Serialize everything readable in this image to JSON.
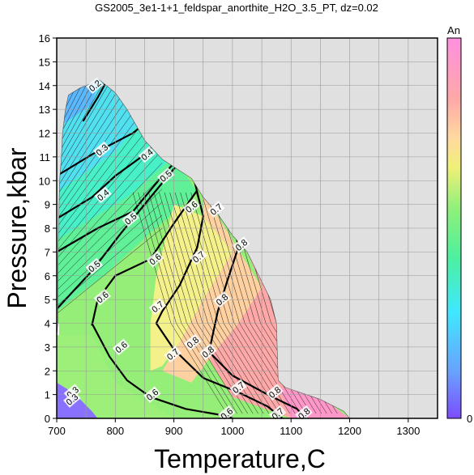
{
  "chart_data": {
    "type": "contour",
    "title": "GS2005_3e1-1+1_feldspar_anorthite_H2O_3.5_PT, dz=0.02",
    "xlabel": "Temperature,C",
    "ylabel": "Pressure,kbar",
    "xlim": [
      700,
      1350
    ],
    "ylim": [
      0,
      16
    ],
    "xticks": [
      700,
      800,
      900,
      1000,
      1100,
      1200,
      1300
    ],
    "yticks": [
      0,
      1,
      2,
      3,
      4,
      5,
      6,
      7,
      8,
      9,
      10,
      11,
      12,
      13,
      14,
      15,
      16
    ],
    "grid": true,
    "colorbar": {
      "label": "An",
      "min_label": "0",
      "min": 0,
      "max": 1
    },
    "region_boundary": [
      [
        700,
        0
      ],
      [
        1200,
        0
      ],
      [
        1190,
        0.3
      ],
      [
        1150,
        0.8
      ],
      [
        1090,
        1.3
      ],
      [
        1078,
        1.6
      ],
      [
        1075,
        4
      ],
      [
        1065,
        5
      ],
      [
        1045,
        6
      ],
      [
        1025,
        7
      ],
      [
        1000,
        7.7
      ],
      [
        975,
        8.6
      ],
      [
        950,
        9.3
      ],
      [
        930,
        10.1
      ],
      [
        905,
        10.5
      ],
      [
        880,
        10.9
      ],
      [
        850,
        11.7
      ],
      [
        820,
        13
      ],
      [
        800,
        13.7
      ],
      [
        780,
        14.1
      ],
      [
        770,
        14.3
      ],
      [
        760,
        14.1
      ],
      [
        740,
        13.9
      ],
      [
        720,
        13.6
      ],
      [
        715,
        13
      ],
      [
        710,
        12
      ],
      [
        708,
        11
      ],
      [
        705,
        10
      ],
      [
        703,
        8
      ],
      [
        702,
        6
      ],
      [
        702,
        4
      ],
      [
        700,
        3.5
      ]
    ],
    "contour_labels": [
      {
        "value": "0.2",
        "T": 765,
        "P": 14.0
      },
      {
        "value": "0.3",
        "T": 777,
        "P": 11.3
      },
      {
        "value": "0.4",
        "T": 854,
        "P": 11.1
      },
      {
        "value": "0.4",
        "T": 779,
        "P": 9.4
      },
      {
        "value": "0.5",
        "T": 886,
        "P": 10.2
      },
      {
        "value": "0.5",
        "T": 826,
        "P": 8.4
      },
      {
        "value": "0.5",
        "T": 764,
        "P": 6.4
      },
      {
        "value": "0.6",
        "T": 930,
        "P": 8.9
      },
      {
        "value": "0.6",
        "T": 868,
        "P": 6.7
      },
      {
        "value": "0.6",
        "T": 778,
        "P": 5.1
      },
      {
        "value": "0.6",
        "T": 810,
        "P": 3.0
      },
      {
        "value": "0.6",
        "T": 863,
        "P": 1.0
      },
      {
        "value": "0.6",
        "T": 990,
        "P": 0.2
      },
      {
        "value": "0.7",
        "T": 972,
        "P": 8.8
      },
      {
        "value": "0.7",
        "T": 942,
        "P": 6.8
      },
      {
        "value": "0.7",
        "T": 872,
        "P": 4.7
      },
      {
        "value": "0.7",
        "T": 898,
        "P": 2.7
      },
      {
        "value": "0.7",
        "T": 1010,
        "P": 1.3
      },
      {
        "value": "0.7",
        "T": 1077,
        "P": 0.2
      },
      {
        "value": "0.8",
        "T": 1015,
        "P": 7.3
      },
      {
        "value": "0.8",
        "T": 982,
        "P": 5.0
      },
      {
        "value": "0.8",
        "T": 958,
        "P": 2.8
      },
      {
        "value": "0.8",
        "T": 1072,
        "P": 1.1
      },
      {
        "value": "0.8",
        "T": 1122,
        "P": 0.2
      },
      {
        "value": "0.8",
        "T": 932,
        "P": 3.2
      },
      {
        "value": "0.3",
        "T": 727,
        "P": 1.1
      },
      {
        "value": "0.3",
        "T": 726,
        "P": 0.8
      }
    ]
  }
}
